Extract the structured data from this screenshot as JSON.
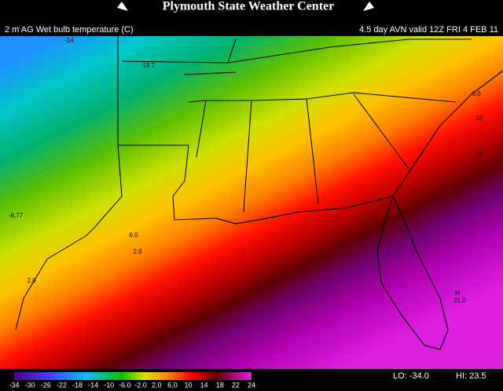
{
  "header": {
    "title": "Plymouth State Weather Center",
    "field": "2 m AG Wet bulb temperature (C)",
    "valid": "4.5 day AVN valid 12Z FRI 4 FEB 11"
  },
  "map_labels": [
    "-14",
    "-18.7",
    "-6.77",
    "2.0",
    "6.0",
    "2.0",
    "6.0",
    "10",
    "14",
    "H",
    "21.0"
  ],
  "colorbar": {
    "labels": [
      "-34",
      "-30",
      "-26",
      "-22",
      "-18",
      "-14",
      "-10",
      "-6.0",
      "-2.0",
      "2.0",
      "6.0",
      "10",
      "14",
      "18",
      "22",
      "24"
    ]
  },
  "footer": {
    "lo": "LO: -34.0",
    "hi": "HI: 23.5"
  }
}
